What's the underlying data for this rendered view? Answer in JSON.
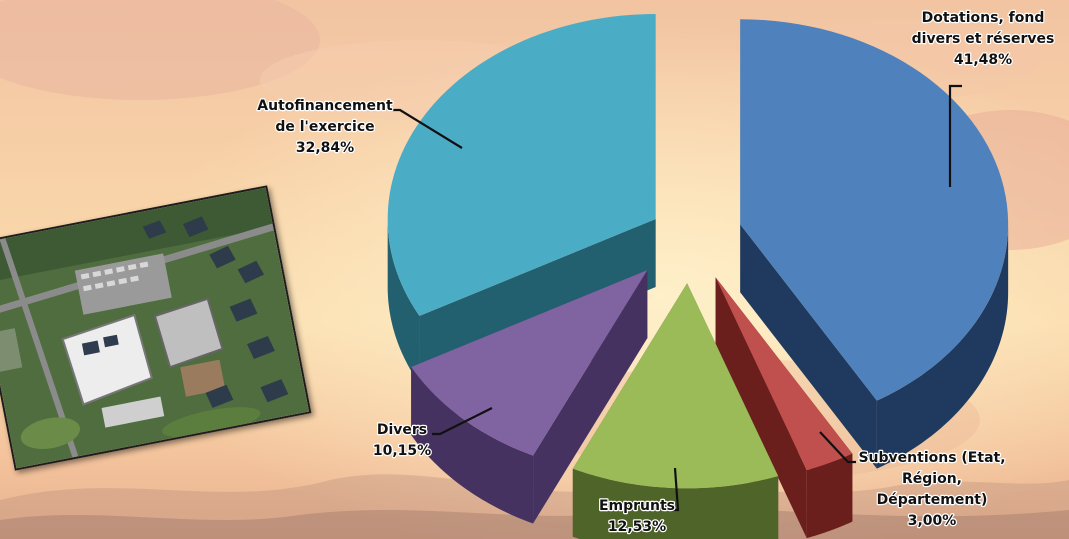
{
  "chart_data": {
    "type": "pie",
    "title": "",
    "slices": [
      {
        "label_lines": [
          "Dotations, fond",
          "divers et réserves"
        ],
        "value_label": "41,48%",
        "value": 41.48,
        "color": "#4f81bd",
        "side": "#1f3a5e"
      },
      {
        "label_lines": [
          "Subventions (Etat,",
          "Région,",
          "Département)"
        ],
        "value_label": "3,00%",
        "value": 3.0,
        "color": "#c0504d",
        "side": "#6b1f1d"
      },
      {
        "label_lines": [
          "Emprunts"
        ],
        "value_label": "12,53%",
        "value": 12.53,
        "color": "#9bbb59",
        "side": "#4e6428"
      },
      {
        "label_lines": [
          "Divers"
        ],
        "value_label": "10,15%",
        "value": 10.15,
        "color": "#8064a2",
        "side": "#453260"
      },
      {
        "label_lines": [
          "Autofinancement",
          "de l'exercice"
        ],
        "value_label": "32,84%",
        "value": 32.84,
        "color": "#4bacc6",
        "side": "#22606f"
      }
    ]
  },
  "photo": {
    "icon": "aerial-building-photo"
  }
}
